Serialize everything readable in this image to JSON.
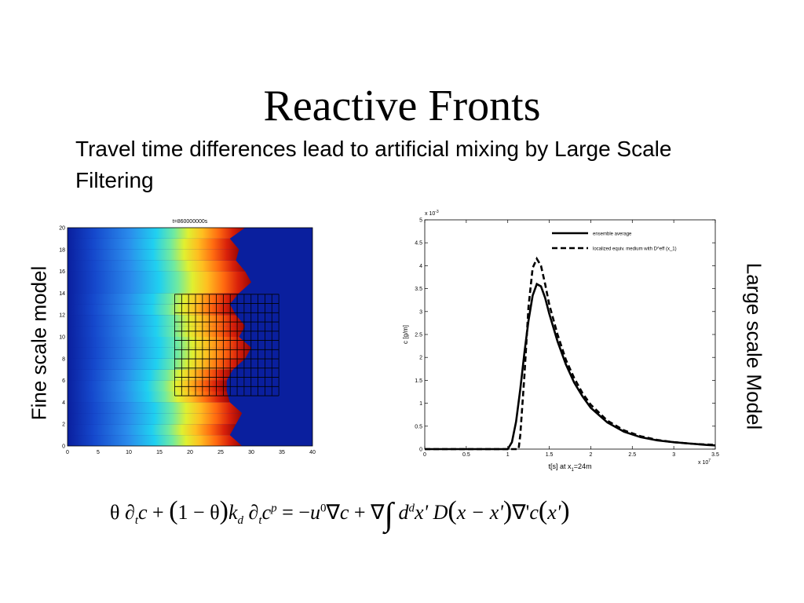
{
  "slide": {
    "title": "Reactive Fronts",
    "subtitle": "Travel time differences lead to artificial mixing by Large Scale Filtering",
    "left_label": "Fine scale model",
    "right_label": "Large scale Model"
  },
  "equation": {
    "theta": "θ",
    "partial": "∂",
    "t_sub": "t",
    "c": "c",
    "plus": "+",
    "one_minus_theta": "1 − θ",
    "k": "k",
    "d_sub": "d",
    "p_sup": "p",
    "equals_minus": "= −",
    "u": "u",
    "zero_sup": "0",
    "nabla": "∇",
    "integral": "∫",
    "d": "d",
    "d_sup": "d",
    "xprime": "x'",
    "D": "D",
    "x_minus_xprime": "x − x'",
    "nabla_prime": "∇'",
    "c_of": "c",
    "xprime_arg": "x'"
  },
  "chart_data": [
    {
      "type": "heatmap",
      "title": "t=860000000s",
      "xlim": [
        0,
        40
      ],
      "ylim": [
        0,
        20
      ],
      "x_ticks": [
        "0",
        "5",
        "10",
        "15",
        "20",
        "25",
        "30",
        "35",
        "40"
      ],
      "y_ticks": [
        "0",
        "2",
        "4",
        "6",
        "8",
        "10",
        "12",
        "14",
        "16",
        "18",
        "20"
      ],
      "front_position_x": [
        28.5,
        26.5,
        27.5,
        28.5,
        26.5,
        26.0,
        26.0,
        27.0,
        29.0,
        30.0,
        28.0,
        29.0,
        27.5,
        26.5,
        28.0,
        30.0,
        29.0,
        27.5,
        28.0,
        26.5,
        29.0
      ],
      "front_position_y": [
        0,
        1,
        2,
        3,
        4,
        5,
        6,
        7,
        8,
        9,
        10,
        11,
        12,
        13,
        14,
        15,
        16,
        17,
        18,
        19,
        20
      ],
      "grid_overlay": {
        "x_range": [
          17.5,
          34.5
        ],
        "y_range": [
          4.6,
          13.9
        ],
        "cols": 15,
        "rows": 11
      }
    },
    {
      "type": "line",
      "xlabel_prefix": "t[s] at x",
      "xlabel_sub": "1",
      "xlabel_suffix": "=24m",
      "ylabel": "c [g/m]",
      "x_exponent": "x 10",
      "x_exponent_power": "7",
      "y_exponent": "x 10",
      "y_exponent_power": "-3",
      "xlim": [
        0,
        3.5
      ],
      "ylim": [
        0,
        5
      ],
      "x_ticks": [
        "0",
        "0.5",
        "1",
        "1.5",
        "2",
        "2.5",
        "3",
        "3.5"
      ],
      "y_ticks": [
        "0",
        "0.5",
        "1",
        "1.5",
        "2",
        "2.5",
        "3",
        "3.5",
        "4",
        "4.5",
        "5"
      ],
      "legend_position": "top-right",
      "series": [
        {
          "name": "ensemble average",
          "style": "solid",
          "x": [
            0,
            1.0,
            1.05,
            1.1,
            1.15,
            1.2,
            1.25,
            1.3,
            1.35,
            1.4,
            1.45,
            1.5,
            1.6,
            1.7,
            1.8,
            1.9,
            2.0,
            2.2,
            2.4,
            2.6,
            2.8,
            3.0,
            3.2,
            3.4,
            3.5
          ],
          "y": [
            0,
            0,
            0.15,
            0.6,
            1.3,
            2.1,
            2.8,
            3.35,
            3.6,
            3.55,
            3.3,
            2.95,
            2.35,
            1.85,
            1.45,
            1.15,
            0.9,
            0.58,
            0.38,
            0.26,
            0.19,
            0.15,
            0.12,
            0.09,
            0.08
          ]
        },
        {
          "name": "localized equiv. medium with D^eff (x_1)",
          "style": "dashed",
          "x": [
            0,
            1.13,
            1.15,
            1.2,
            1.25,
            1.3,
            1.35,
            1.4,
            1.45,
            1.5,
            1.6,
            1.7,
            1.8,
            1.9,
            2.0,
            2.2,
            2.4,
            2.6,
            2.8,
            3.0,
            3.2,
            3.4,
            3.5
          ],
          "y": [
            0,
            0,
            0.3,
            1.6,
            3.1,
            3.95,
            4.15,
            4.0,
            3.6,
            3.15,
            2.5,
            1.95,
            1.55,
            1.22,
            0.97,
            0.62,
            0.41,
            0.28,
            0.2,
            0.15,
            0.12,
            0.1,
            0.09
          ]
        }
      ]
    }
  ],
  "colors": {
    "background": "#ffffff",
    "heatmap_low": "#0a1f9e",
    "heatmap_high": "#8b0000",
    "line": "#000000"
  }
}
